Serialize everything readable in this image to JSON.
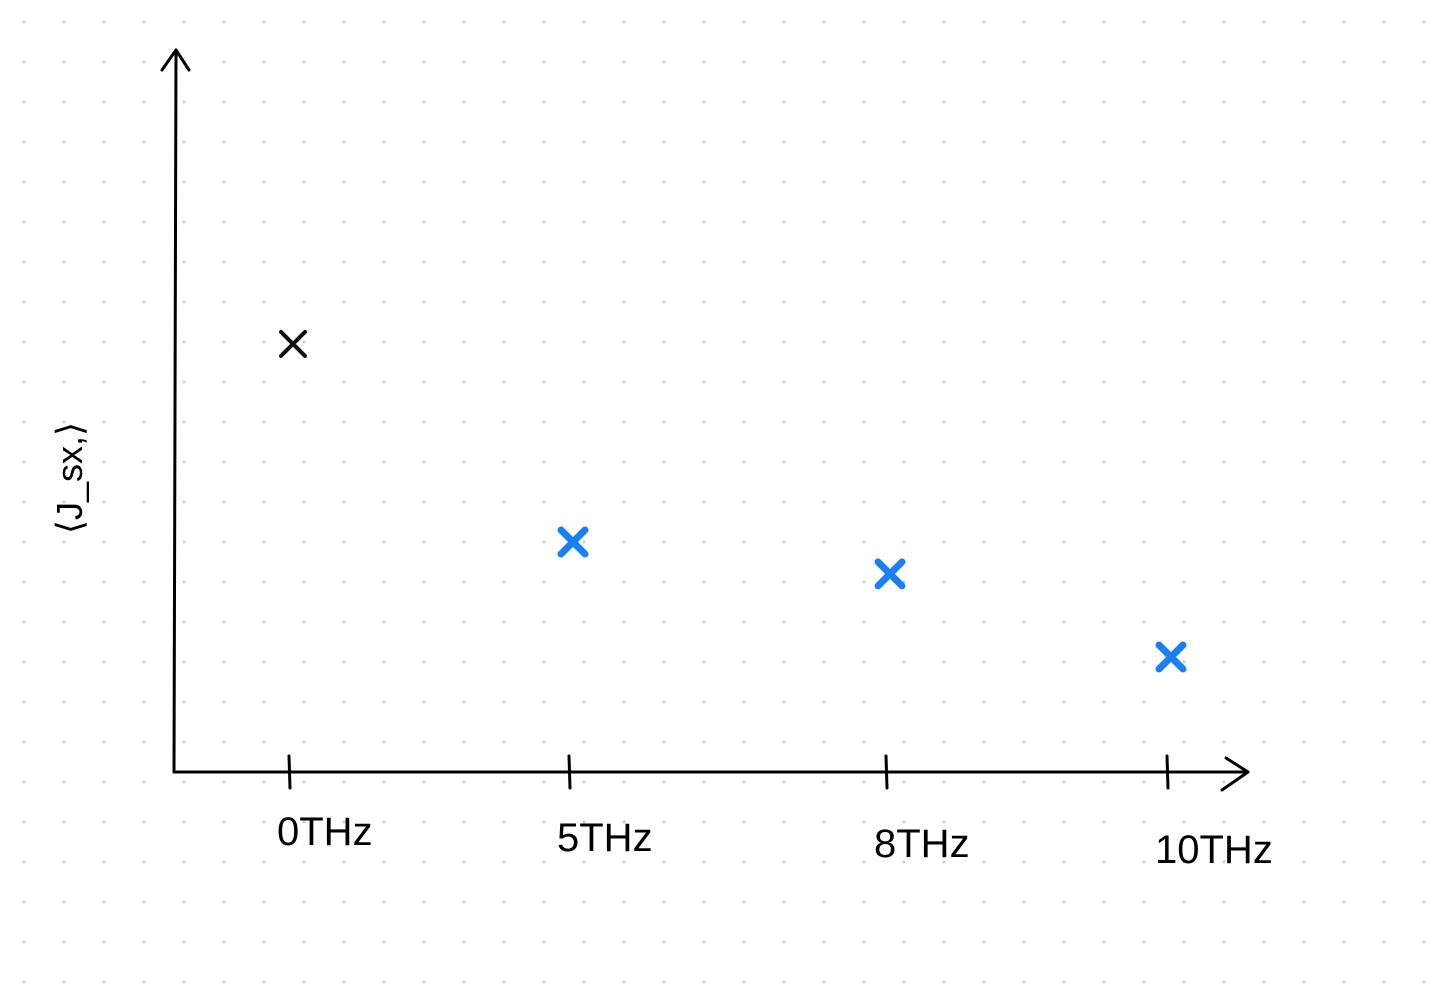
{
  "chart_data": {
    "type": "scatter",
    "ylabel": "⟨J_sx,⟩",
    "xlabel": "",
    "categories": [
      "0THz",
      "5THz",
      "8THz",
      "10THz"
    ],
    "values": [
      0.67,
      0.36,
      0.31,
      0.18
    ],
    "ylim": [
      0,
      1.13
    ],
    "grid": false,
    "legend": "none",
    "marker": "x",
    "point_colors": [
      "#111111",
      "#1a7ff0",
      "#1a7ff0",
      "#1a7ff0"
    ]
  },
  "colors": {
    "axis": "#000000",
    "highlight": "#1a7ff0"
  }
}
